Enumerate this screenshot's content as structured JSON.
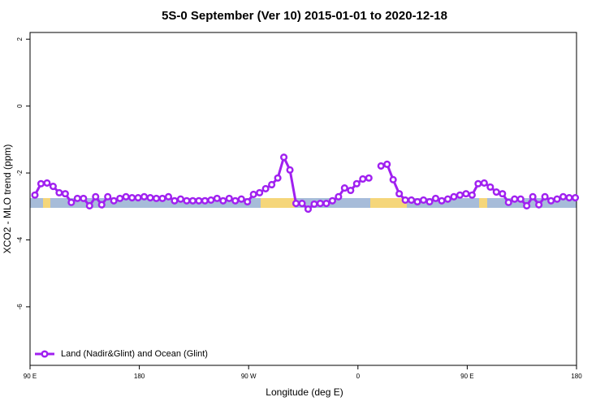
{
  "chart_data": {
    "type": "line",
    "title": "5S-0 September (Ver 10)   2015-01-01 to 2020-12-18",
    "x_label": "Longitude (deg E)",
    "y_label": "XCO2 - MLO trend (ppm)",
    "xlim": [
      90,
      540
    ],
    "xticks": [
      {
        "value": 90,
        "label": "90 E"
      },
      {
        "value": 180,
        "label": "180"
      },
      {
        "value": 270,
        "label": "90 W"
      },
      {
        "value": 360,
        "label": "0"
      },
      {
        "value": 450,
        "label": "90 E"
      },
      {
        "value": 540,
        "label": "180"
      }
    ],
    "ylim": [
      -7.75,
      2.2
    ],
    "yticks": [
      2,
      0,
      -2,
      -4,
      -6
    ],
    "grid": false,
    "legend": "bottom-left",
    "x": [
      94,
      99,
      104,
      109,
      114,
      119,
      124,
      129,
      134,
      139,
      144,
      149,
      154,
      159,
      164,
      169,
      174,
      179,
      184,
      189,
      194,
      199,
      204,
      209,
      214,
      219,
      224,
      229,
      234,
      239,
      244,
      249,
      254,
      259,
      264,
      269,
      274,
      279,
      284,
      289,
      294,
      299,
      304,
      309,
      314,
      319,
      324,
      329,
      334,
      339,
      344,
      349,
      354,
      359,
      364,
      369,
      374,
      379,
      384,
      389,
      394,
      399,
      404,
      409,
      414,
      419,
      424,
      429,
      434,
      439,
      444,
      449,
      454,
      459,
      464,
      469,
      474,
      479,
      484,
      489,
      494,
      499,
      504,
      509,
      514,
      519,
      524,
      529,
      534,
      539
    ],
    "series": [
      {
        "name": "Land (Nadir&Glint) and Ocean (Glint)",
        "color": "#a020f0",
        "values": [
          -2.66,
          -2.32,
          -2.3,
          -2.4,
          -2.59,
          -2.62,
          -2.88,
          -2.76,
          -2.76,
          -2.98,
          -2.71,
          -2.95,
          -2.71,
          -2.83,
          -2.76,
          -2.71,
          -2.74,
          -2.74,
          -2.71,
          -2.74,
          -2.76,
          -2.76,
          -2.71,
          -2.83,
          -2.78,
          -2.83,
          -2.83,
          -2.83,
          -2.83,
          -2.81,
          -2.76,
          -2.83,
          -2.76,
          -2.83,
          -2.78,
          -2.86,
          -2.64,
          -2.59,
          -2.47,
          -2.35,
          -2.15,
          -1.53,
          -1.91,
          -2.91,
          -2.91,
          -3.08,
          -2.93,
          -2.91,
          -2.91,
          -2.83,
          -2.71,
          -2.45,
          -2.52,
          -2.32,
          -2.18,
          -2.15,
          null,
          -1.79,
          -1.74,
          -2.2,
          -2.62,
          -2.81,
          -2.81,
          -2.86,
          -2.81,
          -2.86,
          -2.76,
          -2.83,
          -2.78,
          -2.71,
          -2.66,
          -2.62,
          -2.66,
          -2.32,
          -2.3,
          -2.42,
          -2.57,
          -2.62,
          -2.88,
          -2.78,
          -2.78,
          -2.98,
          -2.71,
          -2.95,
          -2.71,
          -2.83,
          -2.78,
          -2.71,
          -2.74,
          -2.74
        ]
      }
    ]
  }
}
